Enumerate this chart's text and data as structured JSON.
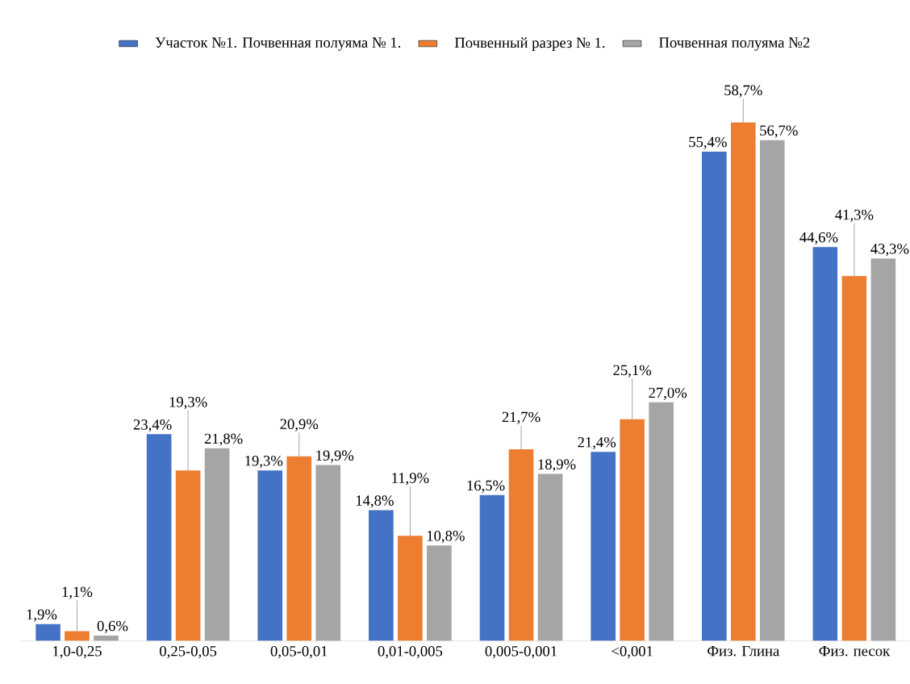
{
  "chart_data": {
    "type": "bar",
    "categories": [
      "1,0-0,25",
      "0,25-0,05",
      "0,05-0,01",
      "0,01-0,005",
      "0,005-0,001",
      "<0,001",
      "Физ. Глина",
      "Физ. песок"
    ],
    "series": [
      {
        "name": "Участок №1.  Почвенная полуяма № 1.",
        "color": "#4472c4",
        "values": [
          1.9,
          23.4,
          19.3,
          14.8,
          16.5,
          21.4,
          55.4,
          44.6
        ],
        "value_labels": [
          "1,9%",
          "23,4%",
          "19,3%",
          "14,8%",
          "16,5%",
          "21,4%",
          "55,4%",
          "44,6%"
        ]
      },
      {
        "name": "Почвенный разрез № 1.",
        "color": "#ed7d31",
        "values": [
          1.1,
          19.3,
          20.9,
          11.9,
          21.7,
          25.1,
          58.7,
          41.3
        ],
        "value_labels": [
          "1,1%",
          "19,3%",
          "20,9%",
          "11,9%",
          "21,7%",
          "25,1%",
          "58,7%",
          "41,3%"
        ]
      },
      {
        "name": "Почвенная полуяма №2",
        "color": "#a5a5a5",
        "values": [
          0.6,
          21.8,
          19.9,
          10.8,
          18.9,
          27.0,
          56.7,
          43.3
        ],
        "value_labels": [
          "0,6%",
          "21,8%",
          "19,9%",
          "10,8%",
          "18,9%",
          "27,0%",
          "56,7%",
          "43,3%"
        ]
      }
    ],
    "legend": "top"
  }
}
